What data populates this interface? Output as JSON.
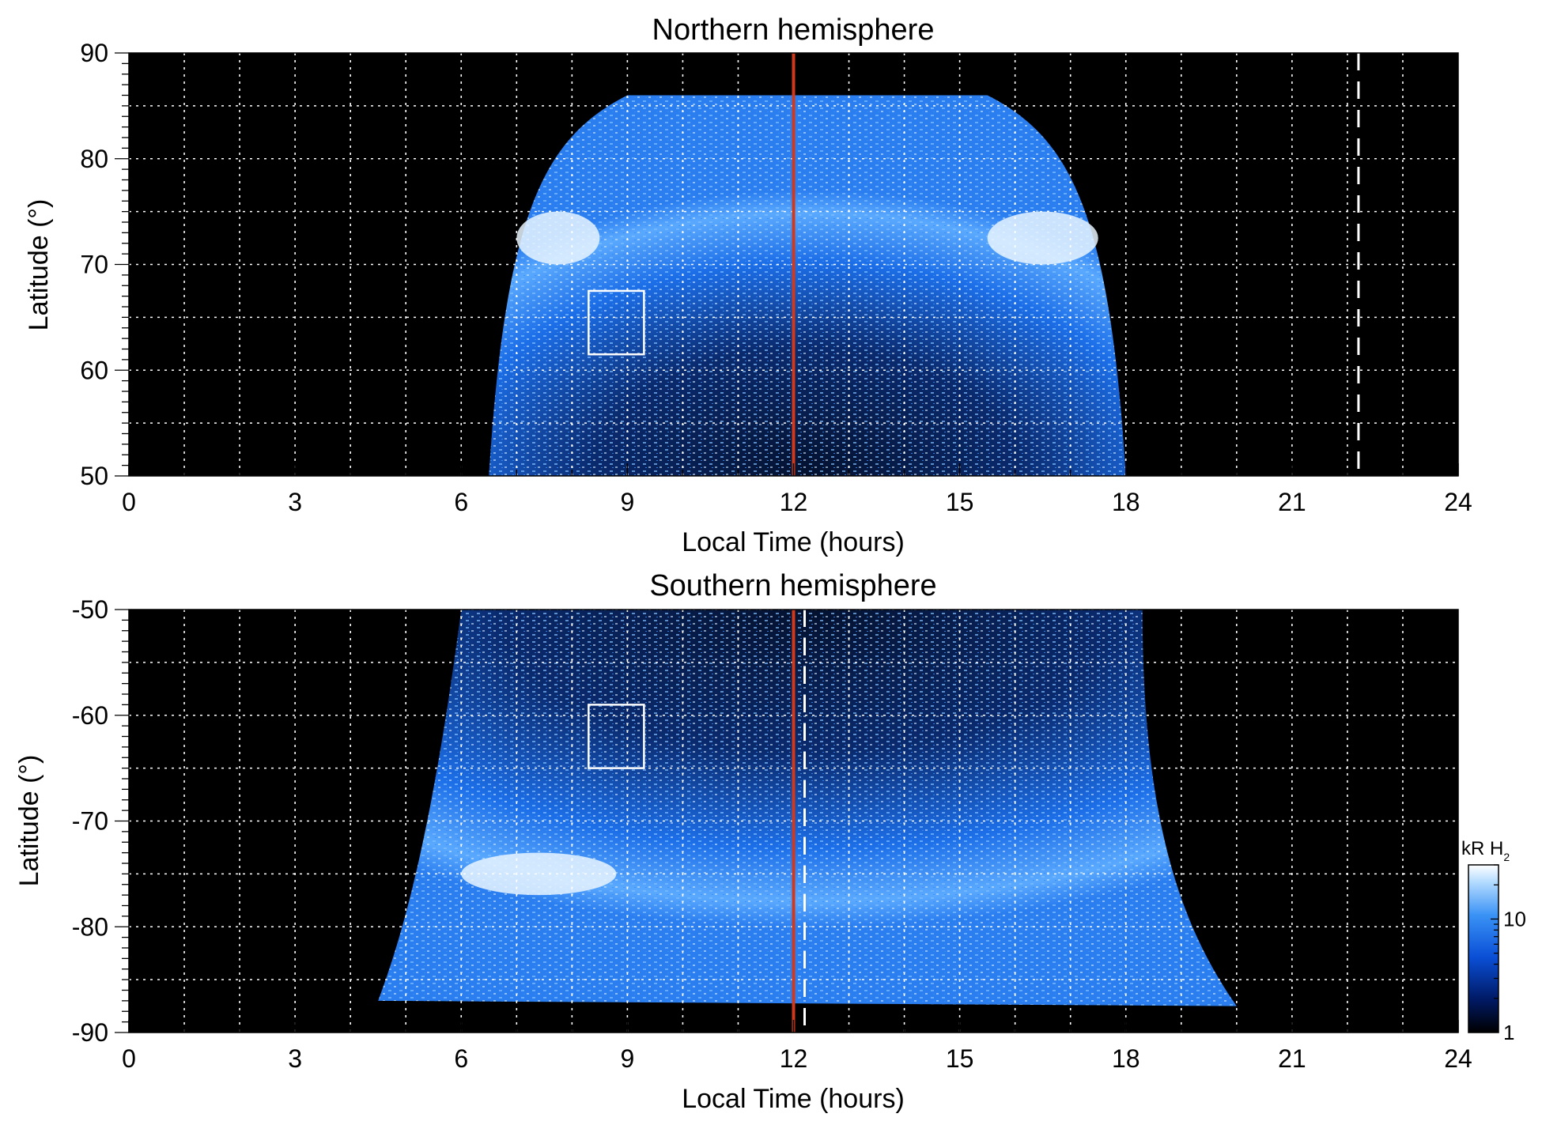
{
  "chart_data": [
    {
      "type": "heatmap",
      "title": "Northern hemisphere",
      "xlabel": "Local Time (hours)",
      "ylabel": "Latitude (°)",
      "xlim": [
        0,
        24
      ],
      "ylim": [
        50,
        90
      ],
      "x_ticks": [
        "0",
        "3",
        "6",
        "9",
        "12",
        "15",
        "18",
        "21",
        "24"
      ],
      "y_ticks": [
        "50",
        "60",
        "70",
        "80",
        "90"
      ],
      "grid": true,
      "grid_x_step": 1,
      "grid_y_step": 5,
      "data_extent_local_time": [
        6.5,
        18.0
      ],
      "emission_boundary_lat_at_6_and_18_LT": 50,
      "emission_boundary_lat_at_12_LT": 86,
      "bright_arcs": [
        {
          "local_time": [
            7.0,
            8.5
          ],
          "latitude": [
            70,
            75
          ]
        },
        {
          "local_time": [
            15.5,
            17.5
          ],
          "latitude": [
            70,
            75
          ]
        }
      ],
      "vertical_lines": [
        {
          "local_time": 12.0,
          "color": "#d0391b",
          "style": "solid"
        },
        {
          "local_time": 22.2,
          "color": "#ffffff",
          "style": "dashed"
        }
      ],
      "box": {
        "local_time": [
          8.3,
          9.3
        ],
        "latitude": [
          61.5,
          67.5
        ]
      }
    },
    {
      "type": "heatmap",
      "title": "Southern hemisphere",
      "xlabel": "Local Time (hours)",
      "ylabel": "Latitude (°)",
      "xlim": [
        0,
        24
      ],
      "ylim": [
        -90,
        -50
      ],
      "x_ticks": [
        "0",
        "3",
        "6",
        "9",
        "12",
        "15",
        "18",
        "21",
        "24"
      ],
      "y_ticks": [
        "-50",
        "-60",
        "-70",
        "-80",
        "-90"
      ],
      "grid": true,
      "grid_x_step": 1,
      "grid_y_step": 5,
      "data_extent_local_time": [
        4.5,
        20.0
      ],
      "bright_arcs": [
        {
          "local_time": [
            6.0,
            8.8
          ],
          "latitude": [
            -77,
            -73
          ]
        }
      ],
      "vertical_lines": [
        {
          "local_time": 12.0,
          "color": "#d0391b",
          "style": "solid"
        },
        {
          "local_time": 12.2,
          "color": "#ffffff",
          "style": "dashed"
        }
      ],
      "box": {
        "local_time": [
          8.3,
          9.3
        ],
        "latitude": [
          -65,
          -59
        ]
      }
    }
  ],
  "colorbar": {
    "title": "kR H",
    "title_subscript": "2",
    "scale": "log",
    "range": [
      1,
      30
    ],
    "ticks": [
      "10",
      "1"
    ],
    "colors": [
      "#000000",
      "#001a66",
      "#0a4fd6",
      "#3a92f5",
      "#b5dcff",
      "#ffffff"
    ]
  }
}
